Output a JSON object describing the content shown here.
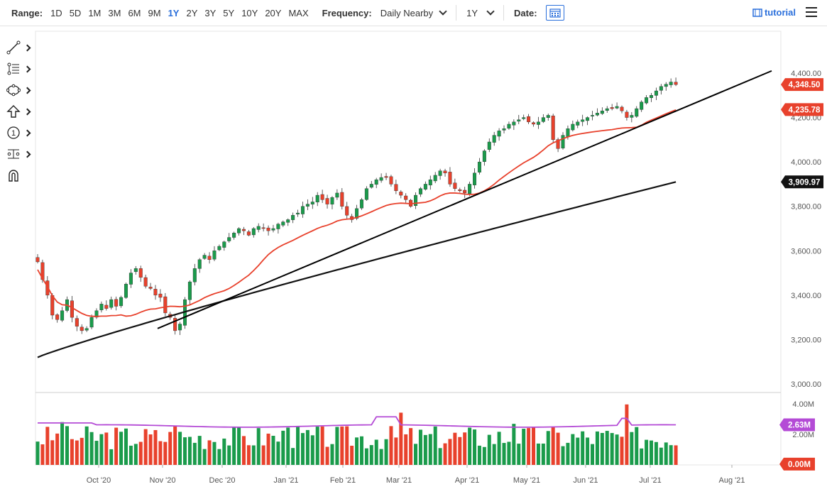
{
  "toolbar": {
    "range_label": "Range:",
    "ranges": [
      "1D",
      "5D",
      "1M",
      "3M",
      "6M",
      "9M",
      "1Y",
      "2Y",
      "3Y",
      "5Y",
      "10Y",
      "20Y",
      "MAX"
    ],
    "active_range": "1Y",
    "frequency_label": "Frequency:",
    "frequency_value": "Daily Nearby",
    "period_value": "1Y",
    "date_label": "Date:",
    "tutorial_label": "tutorial"
  },
  "sidebar": {
    "tools": [
      "line-draw-icon",
      "fib-icon",
      "shape-icon",
      "arrow-icon",
      "number-icon",
      "measure-icon",
      "magnet-icon"
    ]
  },
  "chart_data": {
    "type": "candlestick",
    "price_axis": {
      "ticks": [
        "4,400.00",
        "4,200.00",
        "4,000.00",
        "3,800.00",
        "3,600.00",
        "3,400.00",
        "3,200.00",
        "3,000.00"
      ],
      "ylim": [
        3000,
        4400
      ]
    },
    "time_axis": {
      "ticks": [
        "Oct '20",
        "Nov '20",
        "Dec '20",
        "Jan '21",
        "Feb '21",
        "Mar '21",
        "Apr '21",
        "May '21",
        "Jun '21",
        "Jul '21",
        "Aug '21"
      ]
    },
    "labels": {
      "last_price": "4,348.50",
      "ma_short": "4,235.78",
      "ma_long": "3,909.97"
    },
    "colors": {
      "up": "#1a9b4b",
      "down": "#e8412c",
      "ma_short": "#e8412c",
      "ma_long": "#111111",
      "volume_avg": "#b44bd6"
    },
    "price_path": [
      3550,
      3470,
      3400,
      3310,
      3290,
      3330,
      3380,
      3300,
      3260,
      3240,
      3250,
      3300,
      3330,
      3360,
      3340,
      3380,
      3350,
      3390,
      3450,
      3500,
      3520,
      3480,
      3440,
      3430,
      3400,
      3390,
      3320,
      3300,
      3240,
      3270,
      3380,
      3460,
      3520,
      3560,
      3580,
      3560,
      3600,
      3620,
      3640,
      3660,
      3680,
      3700,
      3690,
      3670,
      3700,
      3710,
      3700,
      3690,
      3700,
      3720,
      3730,
      3740,
      3760,
      3770,
      3800,
      3810,
      3820,
      3850,
      3830,
      3810,
      3840,
      3860,
      3800,
      3760,
      3740,
      3790,
      3830,
      3880,
      3900,
      3920,
      3930,
      3930,
      3900,
      3870,
      3850,
      3830,
      3800,
      3850,
      3880,
      3900,
      3920,
      3940,
      3960,
      3950,
      3900,
      3880,
      3870,
      3860,
      3900,
      3950,
      4000,
      4050,
      4090,
      4120,
      4140,
      4150,
      4170,
      4180,
      4190,
      4200,
      4180,
      4170,
      4180,
      4200,
      4210,
      4100,
      4060,
      4120,
      4150,
      4170,
      4180,
      4190,
      4200,
      4210,
      4220,
      4230,
      4240,
      4240,
      4250,
      4230,
      4200,
      4210,
      4240,
      4270,
      4290,
      4300,
      4320,
      4340,
      4350,
      4360,
      4348.5
    ],
    "volume": {
      "axis_ticks": [
        "4.00M",
        "2.00M"
      ],
      "avg_label": "2.63M",
      "zero_label": "0.00M"
    }
  }
}
